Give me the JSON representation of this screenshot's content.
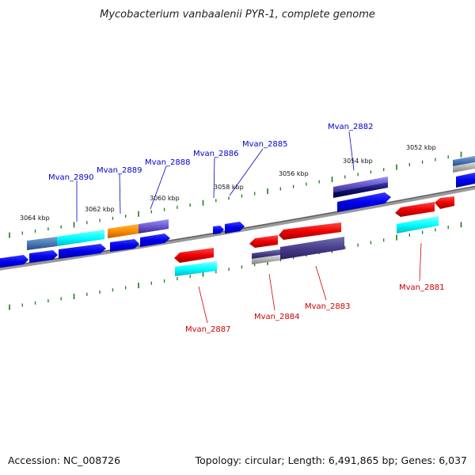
{
  "title": "Mycobacterium vanbaalenii PYR-1, complete genome",
  "footer": {
    "accession": "Accession: NC_008726",
    "info": "Topology: circular; Length: 6,491,865 bp; Genes: 6,037"
  },
  "colors": {
    "forward_label": "#0000cc",
    "reverse_label": "#cc0000",
    "backbone": "#888888",
    "tick": "#1a7a1a"
  },
  "scale_labels": [
    "3064 kbp",
    "3062 kbp",
    "3060 kbp",
    "3058 kbp",
    "3056 kbp",
    "3054 kbp",
    "3052 kbp"
  ],
  "forward_genes": [
    "Mvan_2890",
    "Mvan_2889",
    "Mvan_2888",
    "Mvan_2886",
    "Mvan_2885",
    "Mvan_2882"
  ],
  "reverse_genes": [
    "Mvan_2887",
    "Mvan_2884",
    "Mvan_2883",
    "Mvan_2881"
  ]
}
